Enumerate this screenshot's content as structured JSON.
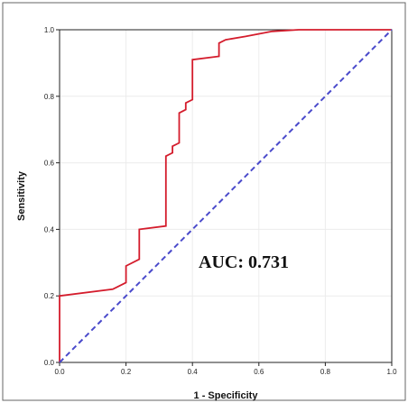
{
  "chart_data": {
    "type": "line",
    "title": "",
    "xlabel": "1 - Specificity",
    "ylabel": "Sensitivity",
    "xlim": [
      0.0,
      1.0
    ],
    "ylim": [
      0.0,
      1.0
    ],
    "x_ticks": [
      "0.0",
      "0.2",
      "0.4",
      "0.6",
      "0.8",
      "1.0"
    ],
    "y_ticks": [
      "0.0",
      "0.2",
      "0.4",
      "0.6",
      "0.8",
      "1.0"
    ],
    "grid": true,
    "annotation": "AUC: 0.731",
    "series": [
      {
        "color": "#d41c2c",
        "style": "solid",
        "x": [
          0.0,
          0.0,
          0.16,
          0.2,
          0.2,
          0.24,
          0.24,
          0.32,
          0.32,
          0.34,
          0.34,
          0.36,
          0.36,
          0.38,
          0.38,
          0.4,
          0.4,
          0.48,
          0.48,
          0.5,
          0.56,
          0.64,
          0.72,
          0.8,
          1.0
        ],
        "y": [
          0.0,
          0.2,
          0.22,
          0.24,
          0.29,
          0.31,
          0.4,
          0.41,
          0.62,
          0.63,
          0.65,
          0.66,
          0.75,
          0.76,
          0.78,
          0.79,
          0.91,
          0.92,
          0.96,
          0.97,
          0.98,
          0.995,
          1.0,
          1.0,
          1.0
        ]
      },
      {
        "color": "#4a4acb",
        "style": "dashed",
        "x": [
          0.0,
          1.0
        ],
        "y": [
          0.0,
          1.0
        ]
      }
    ]
  }
}
